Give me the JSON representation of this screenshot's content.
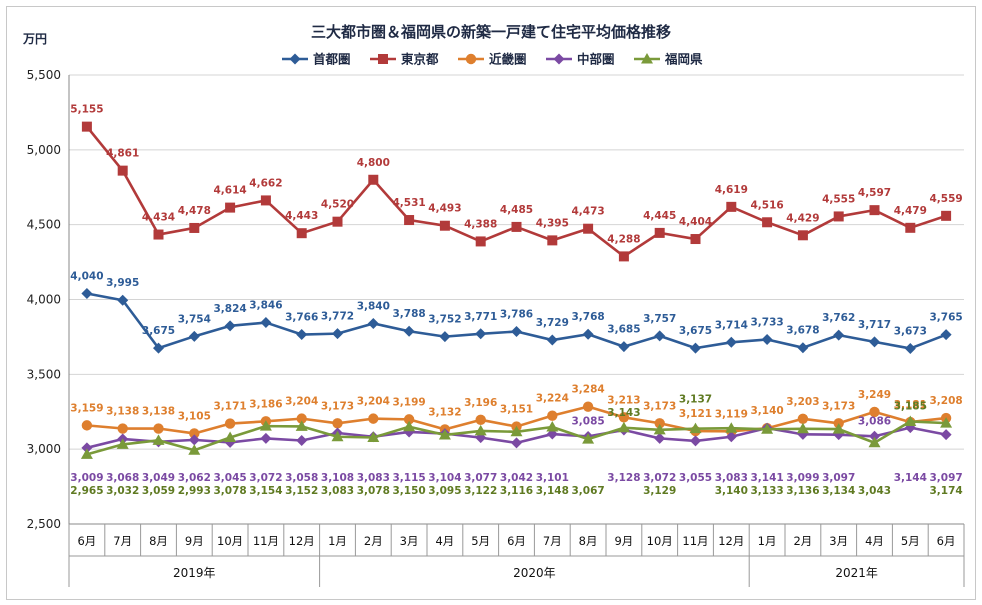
{
  "chart_data": {
    "type": "line",
    "title": "三大都市圏＆福岡県の新築一戸建て住宅平均価格推移",
    "ylabel": "万円",
    "ylim": [
      2500,
      5500
    ],
    "yticks": [
      2500,
      3000,
      3500,
      4000,
      4500,
      5000,
      5500
    ],
    "ytick_labels": [
      "2,500",
      "3,000",
      "3,500",
      "4,000",
      "4,500",
      "5,000",
      "5,500"
    ],
    "categories": [
      "6月",
      "7月",
      "8月",
      "9月",
      "10月",
      "11月",
      "12月",
      "1月",
      "2月",
      "3月",
      "4月",
      "5月",
      "6月",
      "7月",
      "8月",
      "9月",
      "10月",
      "11月",
      "12月",
      "1月",
      "2月",
      "3月",
      "4月",
      "5月",
      "6月"
    ],
    "year_groups": [
      {
        "label": "2019年",
        "start": 0,
        "end": 6
      },
      {
        "label": "2020年",
        "start": 7,
        "end": 18
      },
      {
        "label": "2021年",
        "start": 19,
        "end": 24
      }
    ],
    "grid": "horizontal",
    "legend_position": "top-center",
    "series": [
      {
        "name": "首都圏",
        "color": "#2e5c97",
        "marker": "diamond",
        "values": [
          4040,
          3995,
          3675,
          3754,
          3824,
          3846,
          3766,
          3772,
          3840,
          3788,
          3752,
          3771,
          3786,
          3729,
          3768,
          3685,
          3757,
          3675,
          3714,
          3733,
          3678,
          3762,
          3717,
          3673,
          3765
        ],
        "labels": [
          "4,040",
          "3,995",
          "3,675",
          "3,754",
          "3,824",
          "3,846",
          "3,766",
          "3,772",
          "3,840",
          "3,788",
          "3,752",
          "3,771",
          "3,786",
          "3,729",
          "3,768",
          "3,685",
          "3,757",
          "3,675",
          "3,714",
          "3,733",
          "3,678",
          "3,762",
          "3,717",
          "3,673",
          "3,765"
        ]
      },
      {
        "name": "東京都",
        "color": "#b23a3a",
        "marker": "square",
        "values": [
          5155,
          4861,
          4434,
          4478,
          4614,
          4662,
          4443,
          4520,
          4800,
          4531,
          4493,
          4388,
          4485,
          4395,
          4473,
          4288,
          4445,
          4404,
          4619,
          4516,
          4429,
          4555,
          4597,
          4479,
          4559
        ],
        "labels": [
          "5,155",
          "4,861",
          "4,434",
          "4,478",
          "4,614",
          "4,662",
          "4,443",
          "4,520",
          "4,800",
          "4,531",
          "4,493",
          "4,388",
          "4,485",
          "4,395",
          "4,473",
          "4,288",
          "4,445",
          "4,404",
          "4,619",
          "4,516",
          "4,429",
          "4,555",
          "4,597",
          "4,479",
          "4,559"
        ]
      },
      {
        "name": "近畿圏",
        "color": "#de7f2e",
        "marker": "circle",
        "values": [
          3159,
          3138,
          3138,
          3105,
          3171,
          3186,
          3204,
          3173,
          3204,
          3199,
          3132,
          3196,
          3151,
          3224,
          3284,
          3213,
          3173,
          3121,
          3119,
          3140,
          3203,
          3173,
          3249,
          3181,
          3208
        ],
        "labels": [
          "3,159",
          "3,138",
          "3,138",
          "3,105",
          "3,171",
          "3,186",
          "3,204",
          "3,173",
          "3,204",
          "3,199",
          "3,132",
          "3,196",
          "3,151",
          "3,224",
          "3,284",
          "3,213",
          "3,173",
          "3,121",
          "3,119",
          "3,140",
          "3,203",
          "3,173",
          "3,249",
          "3,181",
          "3,208"
        ]
      },
      {
        "name": "中部圏",
        "color": "#7b4aa3",
        "marker": "diamond",
        "values": [
          3009,
          3068,
          3049,
          3062,
          3045,
          3072,
          3058,
          3108,
          3083,
          3115,
          3104,
          3077,
          3042,
          3101,
          3085,
          3128,
          3072,
          3055,
          3083,
          3141,
          3099,
          3097,
          3086,
          3144,
          3097
        ],
        "labels": [
          "3,009",
          "3,068",
          "3,049",
          "3,062",
          "3,045",
          "3,072",
          "3,058",
          "3,108",
          "3,083",
          "3,115",
          "3,104",
          "3,077",
          "3,042",
          "3,101",
          "3,085",
          "3,128",
          "3,072",
          "3,055",
          "3,083",
          "3,141",
          "3,099",
          "3,097",
          "3,086",
          "3,144",
          "3,097"
        ]
      },
      {
        "name": "福岡県",
        "color": "#7a9a3a",
        "marker": "triangle",
        "values": [
          2965,
          3032,
          3059,
          2993,
          3078,
          3154,
          3152,
          3083,
          3078,
          3150,
          3095,
          3122,
          3116,
          3148,
          3067,
          3143,
          3129,
          3137,
          3140,
          3133,
          3136,
          3134,
          3043,
          3185,
          3174
        ],
        "labels": [
          "2,965",
          "3,032",
          "3,059",
          "2,993",
          "3,078",
          "3,154",
          "3,152",
          "3,083",
          "3,078",
          "3,150",
          "3,095",
          "3,122",
          "3,116",
          "3,148",
          "3,067",
          "3,143",
          "3,129",
          "3,137",
          "3,140",
          "3,133",
          "3,136",
          "3,134",
          "3,043",
          "3,185",
          "3,174"
        ]
      }
    ]
  }
}
